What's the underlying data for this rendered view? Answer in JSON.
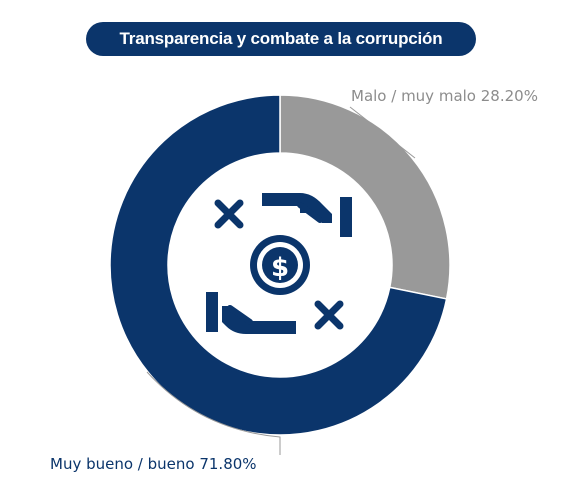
{
  "title": "Transparencia y combate a la corrupción",
  "icon": "hands-exchanging-money-icon",
  "colors": {
    "title_bg": "#0b356b",
    "series": [
      "#0b356b",
      "#999999"
    ],
    "icon": "#0b356b"
  },
  "chart_data": {
    "type": "pie",
    "categories": [
      "Muy bueno / bueno",
      "Malo / muy malo"
    ],
    "values": [
      71.8,
      28.2
    ],
    "labels": [
      "Muy bueno / bueno 71.80%",
      "Malo / muy malo 28.20%"
    ],
    "colors": [
      "#0b356b",
      "#999999"
    ],
    "start": "12 o'clock, counter-clockwise",
    "hole": true
  }
}
